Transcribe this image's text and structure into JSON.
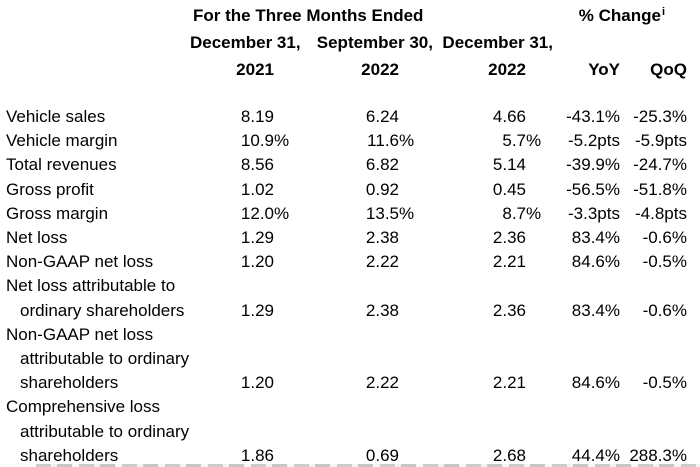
{
  "page": {
    "background": "#ffffff",
    "text_color": "#000000"
  },
  "header": {
    "period_title": "For the Three Months Ended",
    "change_title": "% Change",
    "change_footnote": "i",
    "date_cols": [
      "December 31,",
      "September 30,",
      "December 31,"
    ],
    "year_cols": [
      "2021",
      "2022",
      "2022"
    ],
    "change_cols": [
      "YoY",
      "QoQ"
    ]
  },
  "table": {
    "rows": [
      {
        "label_lines": [
          "Vehicle sales"
        ],
        "v": [
          {
            "n": "8.19",
            "s": ""
          },
          {
            "n": "6.24",
            "s": ""
          },
          {
            "n": "4.66",
            "s": ""
          }
        ],
        "yoy": "-43.1%",
        "qoq": "-25.3%"
      },
      {
        "label_lines": [
          "Vehicle margin"
        ],
        "v": [
          {
            "n": "10.9",
            "s": "%"
          },
          {
            "n": "11.6",
            "s": "%"
          },
          {
            "n": "5.7",
            "s": "%"
          }
        ],
        "yoy": "-5.2pts",
        "qoq": "-5.9pts"
      },
      {
        "label_lines": [
          "Total revenues"
        ],
        "v": [
          {
            "n": "8.56",
            "s": ""
          },
          {
            "n": "6.82",
            "s": ""
          },
          {
            "n": "5.14",
            "s": ""
          }
        ],
        "yoy": "-39.9%",
        "qoq": "-24.7%"
      },
      {
        "label_lines": [
          "Gross profit"
        ],
        "v": [
          {
            "n": "1.02",
            "s": ""
          },
          {
            "n": "0.92",
            "s": ""
          },
          {
            "n": "0.45",
            "s": ""
          }
        ],
        "yoy": "-56.5%",
        "qoq": "-51.8%"
      },
      {
        "label_lines": [
          "Gross margin"
        ],
        "v": [
          {
            "n": "12.0",
            "s": "%"
          },
          {
            "n": "13.5",
            "s": "%"
          },
          {
            "n": "8.7",
            "s": "%"
          }
        ],
        "yoy": "-3.3pts",
        "qoq": "-4.8pts"
      },
      {
        "label_lines": [
          "Net loss"
        ],
        "v": [
          {
            "n": "1.29",
            "s": ""
          },
          {
            "n": "2.38",
            "s": ""
          },
          {
            "n": "2.36",
            "s": ""
          }
        ],
        "yoy": "83.4%",
        "qoq": "-0.6%"
      },
      {
        "label_lines": [
          "Non-GAAP net loss"
        ],
        "v": [
          {
            "n": "1.20",
            "s": ""
          },
          {
            "n": "2.22",
            "s": ""
          },
          {
            "n": "2.21",
            "s": ""
          }
        ],
        "yoy": "84.6%",
        "qoq": "-0.5%"
      },
      {
        "label_lines": [
          "Net loss attributable to",
          "ordinary shareholders"
        ],
        "v": [
          {
            "n": "1.29",
            "s": ""
          },
          {
            "n": "2.38",
            "s": ""
          },
          {
            "n": "2.36",
            "s": ""
          }
        ],
        "yoy": "83.4%",
        "qoq": "-0.6%"
      },
      {
        "label_lines": [
          "Non-GAAP net loss",
          "attributable to ordinary",
          "shareholders"
        ],
        "v": [
          {
            "n": "1.20",
            "s": ""
          },
          {
            "n": "2.22",
            "s": ""
          },
          {
            "n": "2.21",
            "s": ""
          }
        ],
        "yoy": "84.6%",
        "qoq": "-0.5%"
      },
      {
        "label_lines": [
          "Comprehensive loss",
          "attributable to ordinary",
          "shareholders"
        ],
        "v": [
          {
            "n": "1.86",
            "s": ""
          },
          {
            "n": "0.69",
            "s": ""
          },
          {
            "n": "2.68",
            "s": ""
          }
        ],
        "yoy": "44.4%",
        "qoq": "288.3%"
      }
    ]
  }
}
